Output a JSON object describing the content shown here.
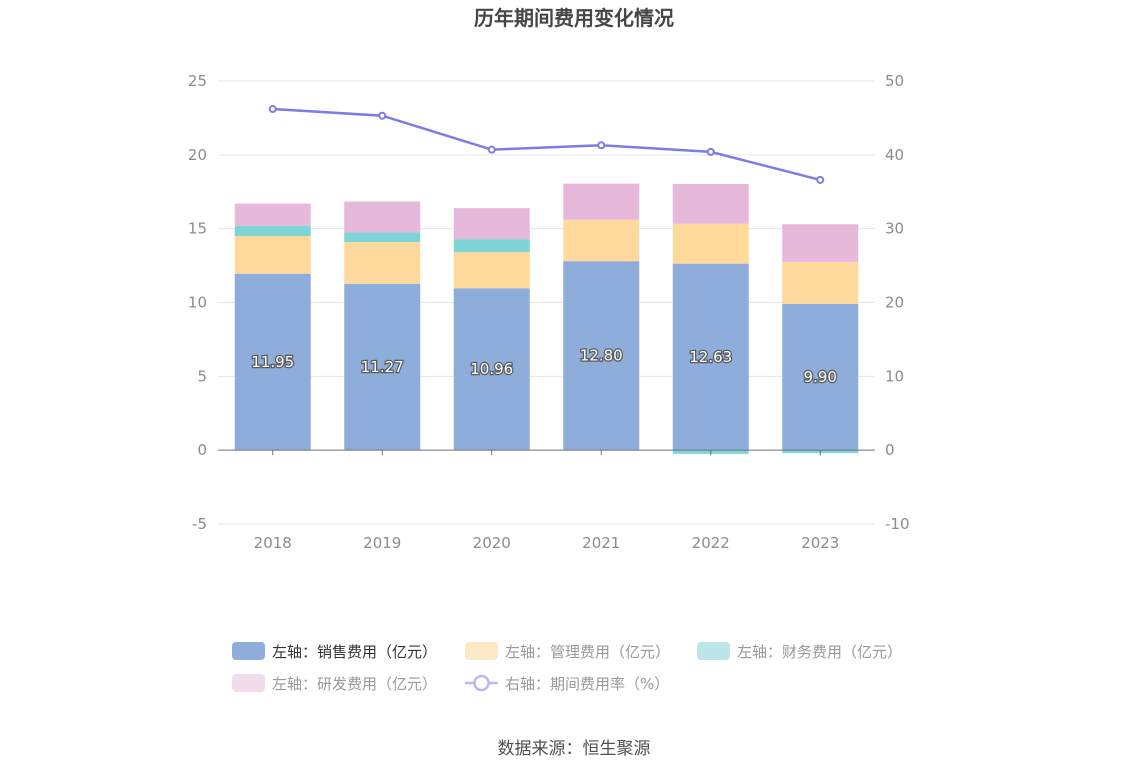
{
  "chart_data": {
    "type": "bar",
    "stacked": true,
    "title": "历年期间费用变化情况",
    "categories": [
      "2018",
      "2019",
      "2020",
      "2021",
      "2022",
      "2023"
    ],
    "left_axis": {
      "min": -5,
      "max": 25,
      "ticks": [
        "-5",
        "0",
        "5",
        "10",
        "15",
        "20",
        "25"
      ]
    },
    "right_axis": {
      "min": -10,
      "max": 50,
      "ticks": [
        "-10",
        "0",
        "10",
        "20",
        "30",
        "40",
        "50"
      ]
    },
    "series": [
      {
        "name": "左轴：销售费用（亿元）",
        "axis": "left",
        "type": "bar",
        "color": "#8eaddb",
        "legend_text_color": "#333333",
        "values": [
          11.95,
          11.27,
          10.96,
          12.8,
          12.63,
          9.9
        ],
        "labels": [
          "11.95",
          "11.27",
          "10.96",
          "12.80",
          "12.63",
          "9.90"
        ]
      },
      {
        "name": "左轴：管理费用（亿元）",
        "axis": "left",
        "type": "bar",
        "color": "#fed99b",
        "legend_color": "#fde9c5",
        "legend_text_color": "#999999",
        "values": [
          2.55,
          2.82,
          2.45,
          2.8,
          2.7,
          2.85
        ]
      },
      {
        "name": "左轴：财务费用（亿元）",
        "axis": "left",
        "type": "bar",
        "color": "#7fd4d7",
        "legend_color": "#bde6e8",
        "legend_text_color": "#999999",
        "values": [
          0.7,
          0.65,
          0.88,
          0.0,
          -0.25,
          -0.2
        ]
      },
      {
        "name": "左轴：研发费用（亿元）",
        "axis": "left",
        "type": "bar",
        "color": "#e6b8da",
        "legend_color": "#f1dcec",
        "legend_text_color": "#999999",
        "values": [
          1.5,
          2.1,
          2.1,
          2.45,
          2.7,
          2.55
        ]
      },
      {
        "name": "右轴：期间费用率（%）",
        "axis": "right",
        "type": "line",
        "color": "#7b7ce6",
        "legend_color": "#b8b9f0",
        "legend_text_color": "#999999",
        "values": [
          46.2,
          45.3,
          40.7,
          41.3,
          40.4,
          36.6
        ]
      }
    ],
    "legend_position": "bottom",
    "grid": true
  },
  "source": "数据来源：恒生聚源"
}
